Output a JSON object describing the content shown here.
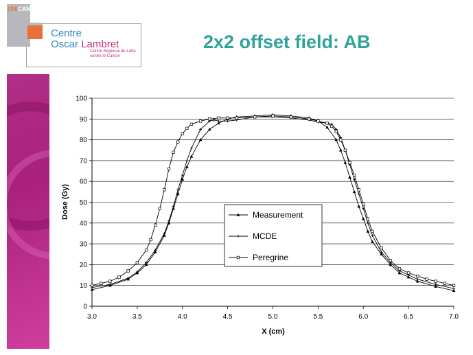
{
  "logo": {
    "brand_prefix": "UNI",
    "brand_suffix": "CANCER",
    "name_line1": "Centre",
    "name_line2_a": "Oscar",
    "name_line2_b": "Lambret",
    "subtitle_line1": "Centre Régional de Lutte",
    "subtitle_line2": "contre le Cancer"
  },
  "slide": {
    "title": "2x2 offset field: AB"
  },
  "colors": {
    "title": "#2fa39a",
    "side_bar": "#b12f86",
    "logo_blue": "#2e89c6",
    "logo_magenta": "#c03080",
    "logo_orange": "#e8703a"
  },
  "chart_data": {
    "type": "line",
    "title": "",
    "xlabel": "X (cm)",
    "ylabel": "Dose (Gy)",
    "xlim": [
      3.0,
      7.0
    ],
    "ylim": [
      0,
      100
    ],
    "xticks": [
      "3.0",
      "3.5",
      "4.0",
      "4.5",
      "5.0",
      "5.5",
      "6.0",
      "6.5",
      "7.0"
    ],
    "yticks": [
      "0",
      "10",
      "20",
      "30",
      "40",
      "50",
      "60",
      "70",
      "80",
      "90",
      "100"
    ],
    "grid": "horizontal",
    "legend_position": "center",
    "series": [
      {
        "name": "Measurement",
        "marker": "triangle",
        "x": [
          3.0,
          3.2,
          3.4,
          3.5,
          3.6,
          3.7,
          3.8,
          3.85,
          3.9,
          3.95,
          4.0,
          4.05,
          4.1,
          4.2,
          4.3,
          4.4,
          4.5,
          4.6,
          4.8,
          5.0,
          5.2,
          5.4,
          5.5,
          5.6,
          5.7,
          5.75,
          5.8,
          5.85,
          5.9,
          5.95,
          6.0,
          6.05,
          6.1,
          6.2,
          6.3,
          6.4,
          6.5,
          6.6,
          6.8,
          7.0
        ],
        "y": [
          8,
          10,
          13,
          16,
          20,
          26,
          34,
          40,
          47,
          54,
          61,
          67,
          72,
          80,
          85,
          88,
          90,
          91,
          91.5,
          92,
          91.5,
          90.5,
          89,
          86,
          80,
          75,
          69,
          62,
          55,
          48,
          42,
          36,
          31,
          25,
          20,
          16,
          14,
          12,
          9.5,
          7.5
        ]
      },
      {
        "name": "MCDE",
        "marker": "plus",
        "x": [
          3.0,
          3.2,
          3.4,
          3.5,
          3.6,
          3.7,
          3.8,
          3.85,
          3.9,
          3.95,
          4.0,
          4.05,
          4.1,
          4.2,
          4.3,
          4.35,
          4.4,
          4.5,
          4.6,
          4.8,
          5.0,
          5.2,
          5.4,
          5.5,
          5.6,
          5.65,
          5.7,
          5.75,
          5.8,
          5.85,
          5.9,
          5.95,
          6.0,
          6.05,
          6.1,
          6.2,
          6.3,
          6.4,
          6.5,
          6.6,
          6.8,
          7.0
        ],
        "y": [
          9,
          10.5,
          13.5,
          16.5,
          21,
          27,
          35,
          41,
          48,
          56,
          63,
          70,
          76,
          85,
          89,
          89.5,
          89,
          89,
          89.5,
          91,
          91,
          90.5,
          89.5,
          88.5,
          88,
          87.5,
          85,
          81,
          75,
          68,
          61,
          54,
          47,
          40,
          34,
          26,
          21,
          17,
          15,
          13,
          10.5,
          8.5
        ]
      },
      {
        "name": "Peregrine",
        "marker": "square",
        "x": [
          3.0,
          3.1,
          3.2,
          3.3,
          3.4,
          3.5,
          3.6,
          3.65,
          3.7,
          3.75,
          3.8,
          3.85,
          3.9,
          3.95,
          4.0,
          4.05,
          4.1,
          4.2,
          4.3,
          4.4,
          4.5,
          4.6,
          4.8,
          5.0,
          5.2,
          5.4,
          5.5,
          5.6,
          5.65,
          5.7,
          5.75,
          5.8,
          5.85,
          5.9,
          5.95,
          6.0,
          6.05,
          6.1,
          6.2,
          6.3,
          6.4,
          6.5,
          6.6,
          6.7,
          6.8,
          6.9,
          7.0
        ],
        "y": [
          10,
          11,
          12,
          14,
          17,
          21,
          27,
          32,
          39,
          47,
          56,
          66,
          74,
          79,
          83,
          85.5,
          87.5,
          89,
          90,
          90.5,
          90.5,
          90.5,
          91,
          91.5,
          91,
          90,
          89,
          88,
          86.5,
          84,
          80,
          75,
          69,
          63,
          56,
          49,
          42,
          36,
          28,
          22,
          18,
          16,
          14.5,
          13,
          12,
          11,
          10
        ]
      }
    ]
  }
}
